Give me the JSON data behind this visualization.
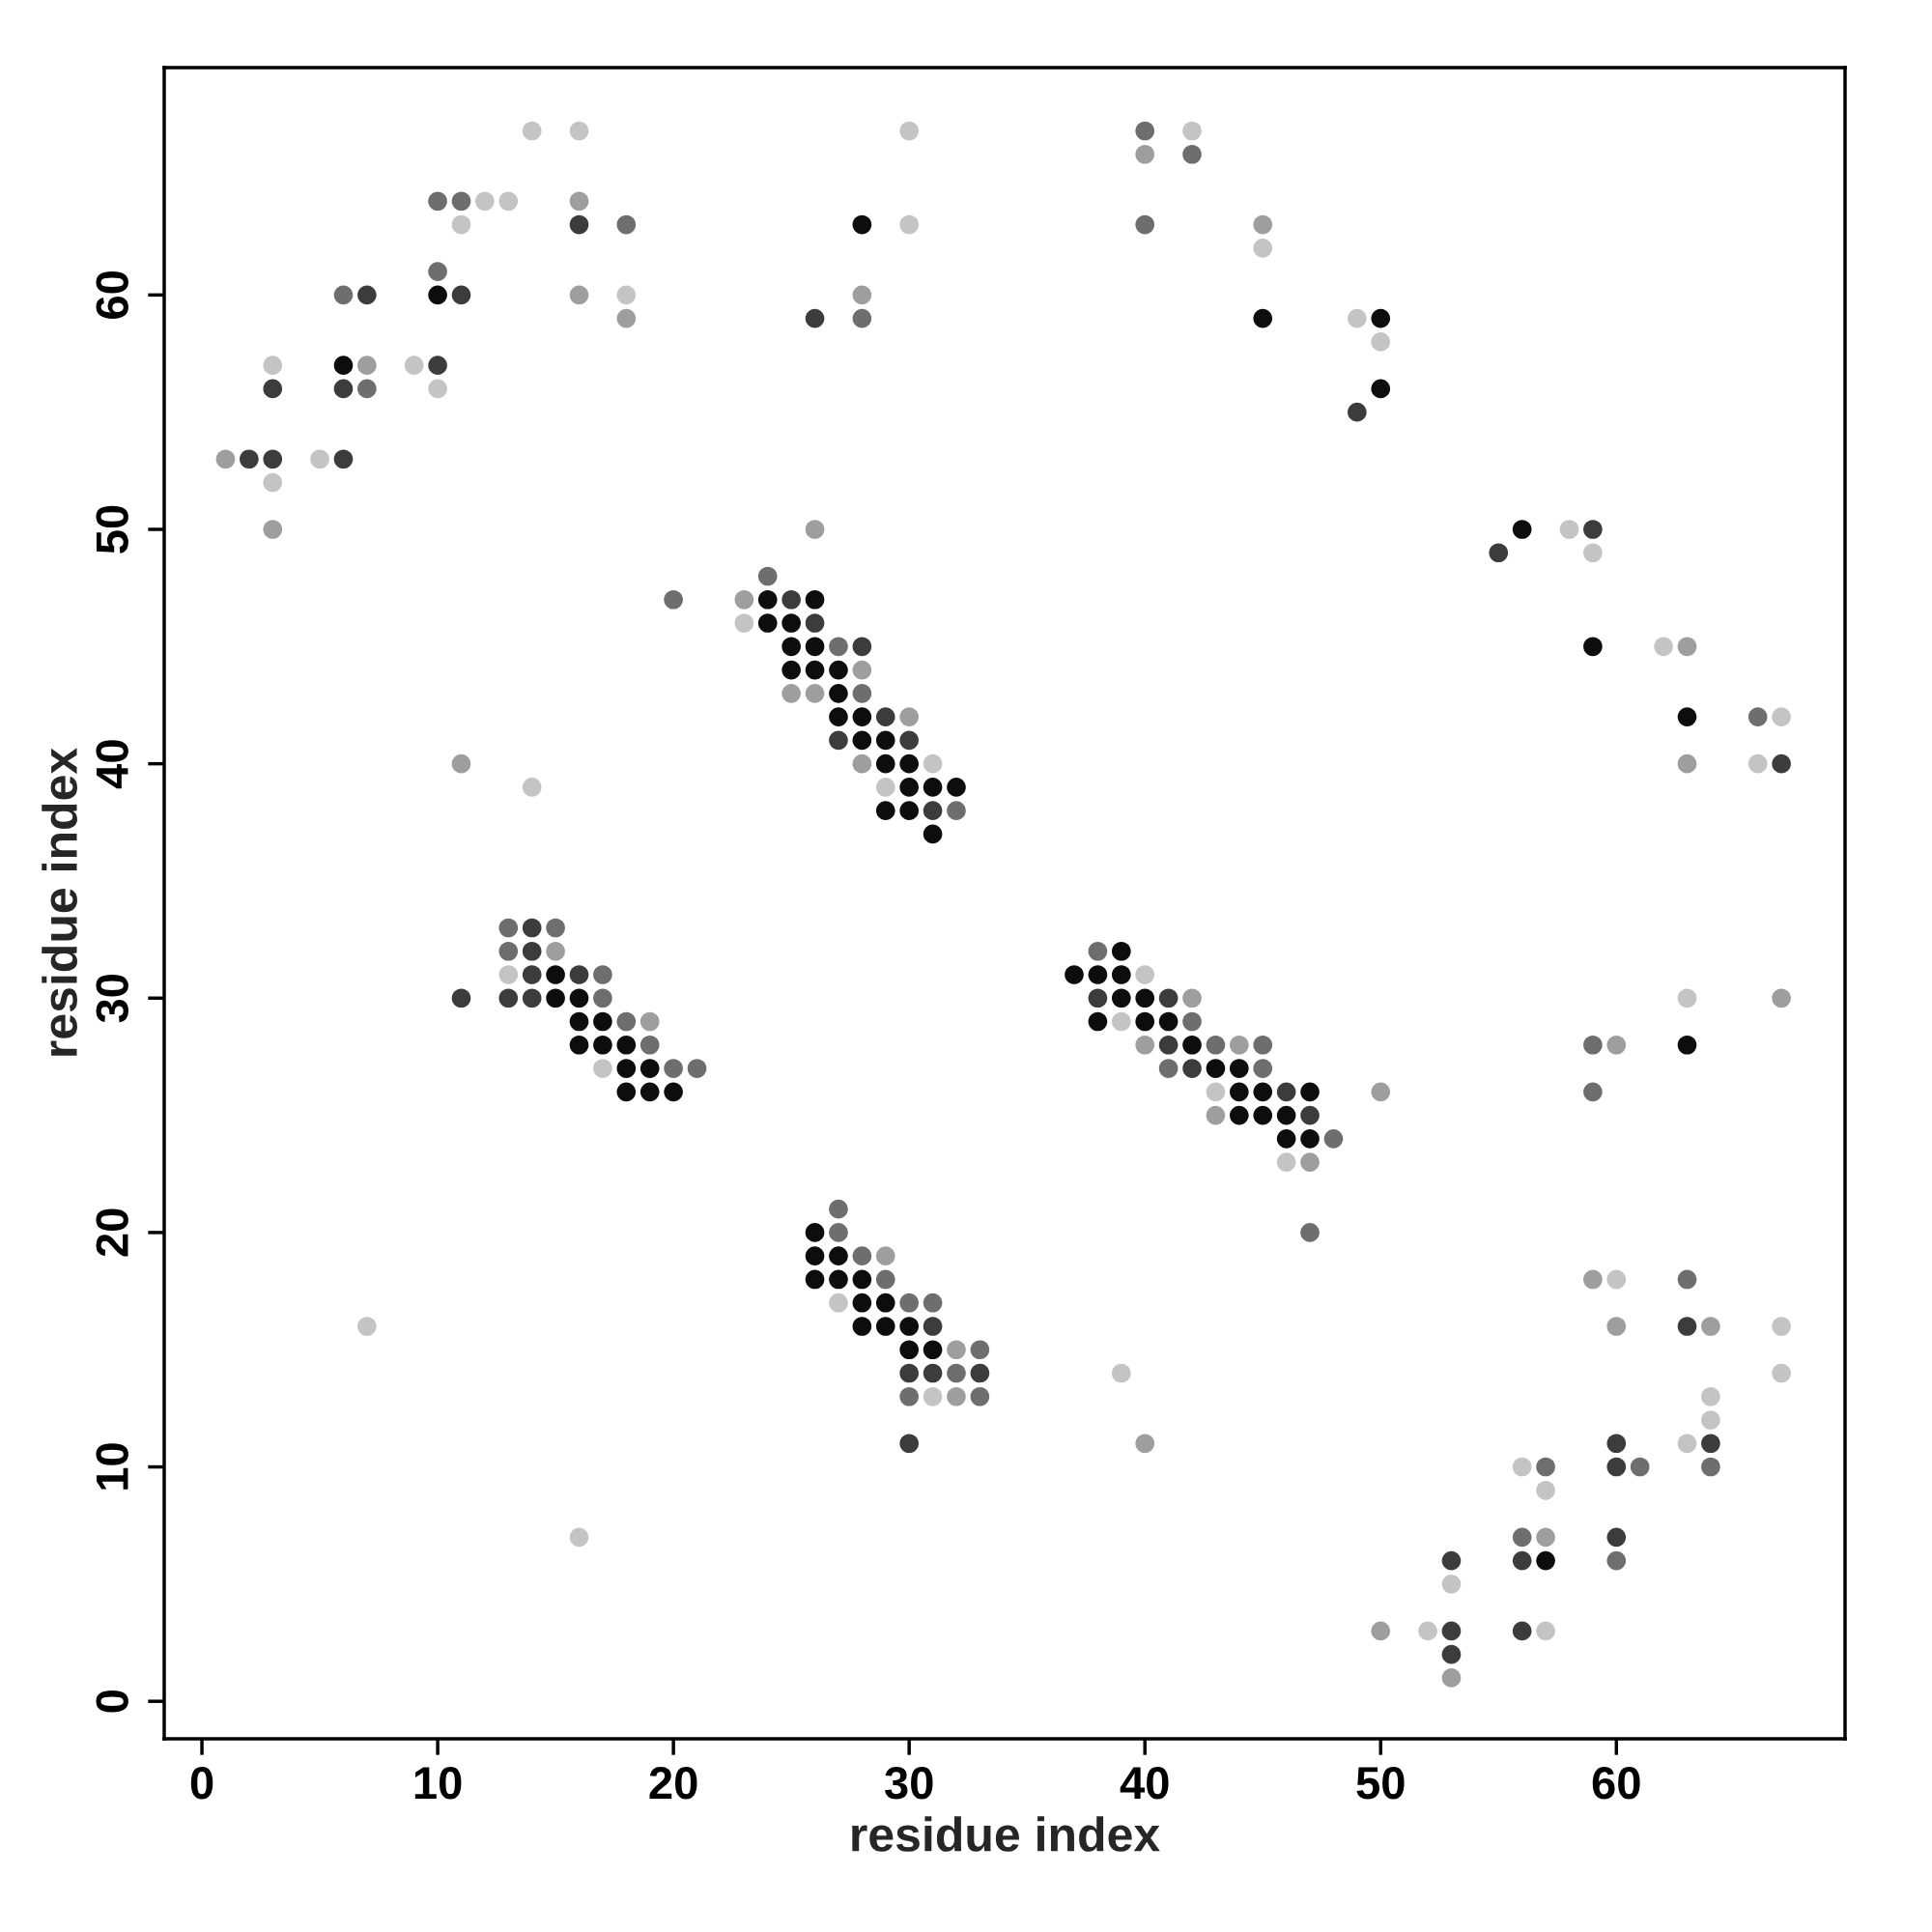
{
  "chart_data": {
    "type": "scatter",
    "xlabel": "residue index",
    "ylabel": "residue index",
    "xlim": [
      -1.6,
      69.7
    ],
    "ylim": [
      -1.6,
      69.7
    ],
    "xticks": [
      0,
      10,
      20,
      30,
      40,
      50,
      60
    ],
    "yticks": [
      0,
      10,
      20,
      30,
      40,
      50,
      60
    ],
    "marker": "circle",
    "grid": false,
    "series": [
      {
        "color": "#0d0d0d",
        "x": [
          6,
          10,
          15,
          15,
          16,
          16,
          16,
          17,
          17,
          18,
          18,
          18,
          19,
          19,
          20,
          24,
          24,
          25,
          25,
          25,
          26,
          26,
          26,
          26,
          26,
          26,
          27,
          27,
          27,
          27,
          27,
          28,
          28,
          28,
          28,
          28,
          28,
          29,
          29,
          29,
          29,
          29,
          30,
          30,
          30,
          30,
          30,
          31,
          31,
          31,
          32,
          37,
          38,
          38,
          39,
          39,
          39,
          40,
          40,
          41,
          42,
          43,
          44,
          44,
          44,
          45,
          45,
          45,
          46,
          46,
          47,
          47,
          50,
          50,
          56,
          57,
          59,
          63,
          63
        ],
        "values": [
          57,
          60,
          31,
          30,
          30,
          29,
          28,
          29,
          28,
          28,
          27,
          26,
          27,
          26,
          26,
          47,
          46,
          46,
          45,
          44,
          47,
          45,
          44,
          20,
          19,
          18,
          44,
          43,
          42,
          19,
          18,
          63,
          42,
          41,
          18,
          17,
          16,
          41,
          40,
          38,
          17,
          16,
          40,
          39,
          38,
          16,
          15,
          39,
          37,
          15,
          39,
          31,
          31,
          29,
          32,
          31,
          30,
          30,
          29,
          29,
          28,
          27,
          27,
          26,
          25,
          59,
          26,
          25,
          25,
          24,
          26,
          24,
          59,
          56,
          50,
          6,
          45,
          42,
          28
        ]
      },
      {
        "color": "#3c3c3c",
        "x": [
          2,
          3,
          3,
          6,
          6,
          7,
          10,
          11,
          11,
          13,
          14,
          14,
          14,
          14,
          16,
          16,
          25,
          26,
          26,
          27,
          28,
          29,
          30,
          30,
          30,
          31,
          31,
          31,
          33,
          38,
          41,
          41,
          42,
          46,
          47,
          49,
          53,
          53,
          53,
          55,
          56,
          56,
          59,
          60,
          60,
          60,
          63,
          64,
          67
        ],
        "values": [
          53,
          56,
          53,
          56,
          53,
          60,
          57,
          60,
          30,
          30,
          33,
          32,
          31,
          30,
          63,
          31,
          47,
          59,
          46,
          41,
          45,
          42,
          41,
          14,
          11,
          38,
          16,
          14,
          14,
          30,
          30,
          28,
          27,
          26,
          25,
          55,
          6,
          3,
          2,
          49,
          6,
          3,
          50,
          11,
          10,
          7,
          16,
          11,
          40
        ]
      },
      {
        "color": "#6e6e6e",
        "x": [
          6,
          7,
          10,
          10,
          11,
          13,
          13,
          15,
          17,
          17,
          18,
          18,
          19,
          20,
          20,
          21,
          24,
          27,
          27,
          27,
          28,
          28,
          28,
          29,
          30,
          30,
          31,
          32,
          32,
          33,
          33,
          38,
          40,
          40,
          41,
          42,
          42,
          43,
          45,
          45,
          47,
          48,
          56,
          57,
          59,
          59,
          60,
          61,
          63,
          64,
          66
        ],
        "values": [
          60,
          56,
          64,
          61,
          64,
          33,
          32,
          33,
          31,
          30,
          63,
          29,
          28,
          47,
          27,
          27,
          48,
          45,
          21,
          20,
          59,
          43,
          19,
          18,
          17,
          13,
          17,
          38,
          14,
          15,
          13,
          32,
          67,
          63,
          27,
          66,
          29,
          28,
          28,
          27,
          20,
          24,
          7,
          10,
          28,
          26,
          6,
          10,
          18,
          10,
          42
        ]
      },
      {
        "color": "#9e9e9e",
        "x": [
          1,
          3,
          7,
          11,
          15,
          16,
          16,
          18,
          19,
          23,
          25,
          26,
          26,
          28,
          28,
          28,
          29,
          30,
          32,
          32,
          40,
          40,
          40,
          42,
          43,
          44,
          45,
          47,
          50,
          50,
          53,
          57,
          59,
          60,
          60,
          63,
          63,
          64,
          67
        ],
        "values": [
          53,
          50,
          57,
          40,
          32,
          64,
          60,
          59,
          29,
          47,
          43,
          50,
          43,
          60,
          44,
          40,
          19,
          42,
          15,
          13,
          66,
          28,
          11,
          30,
          25,
          28,
          63,
          23,
          26,
          3,
          1,
          7,
          18,
          28,
          16,
          45,
          40,
          16,
          30
        ]
      },
      {
        "color": "#c4c4c4",
        "x": [
          3,
          3,
          5,
          7,
          9,
          10,
          11,
          12,
          13,
          13,
          14,
          14,
          16,
          16,
          17,
          18,
          23,
          27,
          29,
          30,
          30,
          31,
          31,
          39,
          39,
          40,
          42,
          43,
          45,
          46,
          49,
          50,
          52,
          53,
          56,
          57,
          57,
          58,
          59,
          60,
          62,
          63,
          63,
          64,
          64,
          66,
          67,
          67,
          67
        ],
        "values": [
          57,
          52,
          53,
          16,
          57,
          56,
          63,
          64,
          64,
          31,
          67,
          39,
          67,
          7,
          27,
          60,
          46,
          17,
          39,
          67,
          63,
          40,
          13,
          29,
          14,
          31,
          67,
          26,
          62,
          23,
          59,
          58,
          3,
          5,
          10,
          9,
          3,
          50,
          49,
          18,
          45,
          30,
          11,
          13,
          12,
          40,
          42,
          16,
          14
        ]
      }
    ]
  }
}
